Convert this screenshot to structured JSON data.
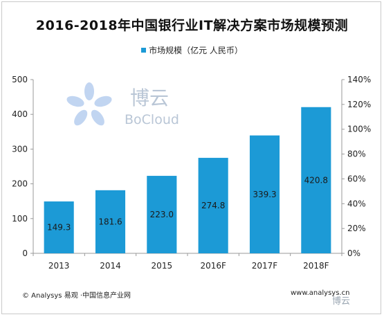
{
  "chart_data": {
    "type": "bar",
    "title": "2016-2018年中国银行业IT解决方案市场规模预测",
    "categories": [
      "2013",
      "2014",
      "2015",
      "2016F",
      "2017F",
      "2018F"
    ],
    "series": [
      {
        "name": "市场规模（亿元 人民币）",
        "values": [
          149.3,
          181.6,
          223.0,
          274.8,
          339.3,
          420.8
        ]
      }
    ],
    "value_labels": [
      "149.3",
      "181.6",
      "223.0",
      "274.8",
      "339.3",
      "420.8"
    ],
    "ylim": [
      0,
      500
    ],
    "yticks": [
      "0",
      "100",
      "200",
      "300",
      "400",
      "500"
    ],
    "y2lim": [
      0,
      1.4
    ],
    "y2ticks": [
      "0%",
      "20%",
      "40%",
      "60%",
      "80%",
      "100%",
      "120%",
      "140%"
    ],
    "legend_position": "top",
    "grid": false,
    "colors": {
      "bar": "#1c9ad6",
      "axis": "#999999"
    }
  },
  "footer": {
    "source": "© Analysys 易观 ·中国信息产业网",
    "website": "www.analysys.cn"
  },
  "watermark": {
    "logo_cn": "博云",
    "logo_en": "BoCloud"
  }
}
